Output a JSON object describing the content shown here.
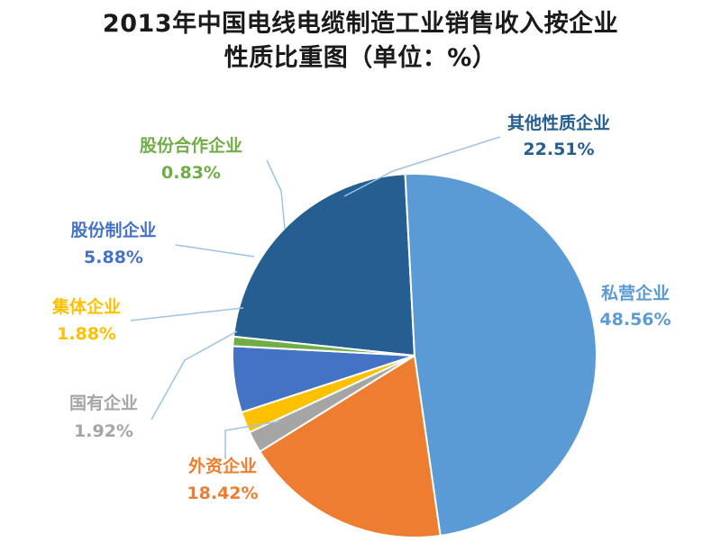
{
  "chart_data": {
    "type": "pie",
    "title_line1": "2013年中国电线电缆制造工业销售收入按企业",
    "title_line2": "性质比重图（单位：%）",
    "slices": [
      {
        "name": "其他性质企业",
        "value": 22.51,
        "label": "22.51%",
        "color": "#255e91"
      },
      {
        "name": "私营企业",
        "value": 48.56,
        "label": "48.56%",
        "color": "#5b9bd5"
      },
      {
        "name": "外资企业",
        "value": 18.42,
        "label": "18.42%",
        "color": "#ed7d31"
      },
      {
        "name": "国有企业",
        "value": 1.92,
        "label": "1.92%",
        "color": "#a5a5a5"
      },
      {
        "name": "集体企业",
        "value": 1.88,
        "label": "1.88%",
        "color": "#ffc000"
      },
      {
        "name": "股份制企业",
        "value": 5.88,
        "label": "5.88%",
        "color": "#4472c4"
      },
      {
        "name": "股份合作企业",
        "value": 0.83,
        "label": "0.83%",
        "color": "#70ad47"
      }
    ],
    "leader_line_color": "#9dc3e6"
  }
}
